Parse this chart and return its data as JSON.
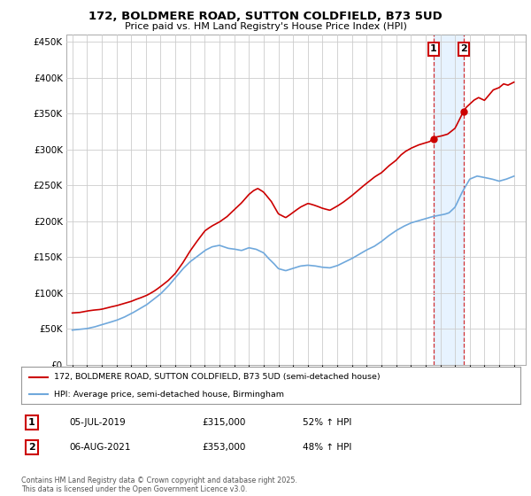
{
  "title_line1": "172, BOLDMERE ROAD, SUTTON COLDFIELD, B73 5UD",
  "title_line2": "Price paid vs. HM Land Registry's House Price Index (HPI)",
  "background_color": "#ffffff",
  "grid_color": "#cccccc",
  "red_color": "#cc0000",
  "blue_color": "#6fa8dc",
  "shade_color": "#ddeeff",
  "marker1_year": 2019.54,
  "marker1_value": 315000,
  "marker2_year": 2021.6,
  "marker2_value": 353000,
  "legend_entry1": "172, BOLDMERE ROAD, SUTTON COLDFIELD, B73 5UD (semi-detached house)",
  "legend_entry2": "HPI: Average price, semi-detached house, Birmingham",
  "annotation1_label": "1",
  "annotation1_date": "05-JUL-2019",
  "annotation1_price": "£315,000",
  "annotation1_hpi": "52% ↑ HPI",
  "annotation2_label": "2",
  "annotation2_date": "06-AUG-2021",
  "annotation2_price": "£353,000",
  "annotation2_hpi": "48% ↑ HPI",
  "footer": "Contains HM Land Registry data © Crown copyright and database right 2025.\nThis data is licensed under the Open Government Licence v3.0.",
  "ylim": [
    0,
    460000
  ],
  "xlim_start": 1994.6,
  "xlim_end": 2025.8
}
